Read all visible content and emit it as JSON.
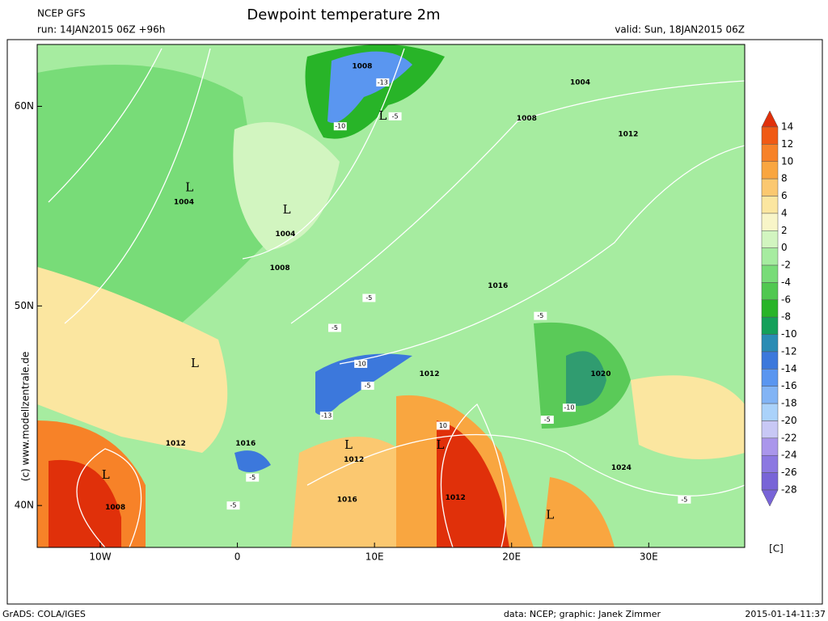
{
  "header": {
    "model": "NCEP GFS",
    "run": "run: 14JAN2015 06Z +96h",
    "title": "Dewpoint temperature 2m",
    "valid": "valid: Sun, 18JAN2015 06Z"
  },
  "side_text": "(c) www.modellzentrale.de",
  "map": {
    "lonlim": [
      -14.6,
      37
    ],
    "latlim": [
      37.9,
      63.1
    ],
    "lonticks": [
      {
        "value": -10,
        "label": "10W"
      },
      0,
      {
        "value": 10,
        "label": "10E"
      },
      {
        "value": 20,
        "label": "20E"
      },
      {
        "value": 30,
        "label": "30E"
      }
    ],
    "latticks": [
      {
        "value": 40,
        "label": "40N"
      },
      {
        "value": 50,
        "label": "50N"
      },
      {
        "value": 60,
        "label": "60N"
      }
    ],
    "isobar_labels": [
      {
        "value": 1008,
        "lon": 9.1,
        "lat": 62.0
      },
      {
        "value": 1004,
        "lon": 25.0,
        "lat": 61.2
      },
      {
        "value": 1008,
        "lon": 21.1,
        "lat": 59.4
      },
      {
        "value": 1012,
        "lon": 28.5,
        "lat": 58.6
      },
      {
        "value": 1004,
        "lon": -3.9,
        "lat": 55.2
      },
      {
        "value": 1004,
        "lon": 3.5,
        "lat": 53.6
      },
      {
        "value": 1008,
        "lon": 3.1,
        "lat": 51.9
      },
      {
        "value": 1016,
        "lon": 19.0,
        "lat": 51.0
      },
      {
        "value": 1012,
        "lon": 14.0,
        "lat": 46.6
      },
      {
        "value": 1020,
        "lon": 26.5,
        "lat": 46.6
      },
      {
        "value": 1012,
        "lon": -4.5,
        "lat": 43.1
      },
      {
        "value": 1016,
        "lon": 0.6,
        "lat": 43.1
      },
      {
        "value": 1012,
        "lon": 8.5,
        "lat": 42.3
      },
      {
        "value": 1024,
        "lon": 28.0,
        "lat": 41.9
      },
      {
        "value": 1016,
        "lon": 8.0,
        "lat": 40.3
      },
      {
        "value": 1012,
        "lon": 15.9,
        "lat": 40.4
      },
      {
        "value": 1008,
        "lon": -8.9,
        "lat": 39.9
      }
    ],
    "low_label": "L",
    "lows": [
      {
        "lon": 10.6,
        "lat": 59.5
      },
      {
        "lon": -3.5,
        "lat": 55.9
      },
      {
        "lon": 3.6,
        "lat": 54.8
      },
      {
        "lon": -3.1,
        "lat": 47.1
      },
      {
        "lon": -9.6,
        "lat": 41.5
      },
      {
        "lon": 8.1,
        "lat": 43.0
      },
      {
        "lon": 14.8,
        "lat": 43.0
      },
      {
        "lon": 22.8,
        "lat": 39.5
      }
    ],
    "dewpoint_labels": [
      {
        "value": -13,
        "lon": 10.6,
        "lat": 61.2
      },
      {
        "value": -5,
        "lon": 11.5,
        "lat": 59.5
      },
      {
        "value": -10,
        "lon": 7.5,
        "lat": 59.0
      },
      {
        "value": -5,
        "lon": 9.6,
        "lat": 50.4
      },
      {
        "value": -5,
        "lon": 7.1,
        "lat": 48.9
      },
      {
        "value": -10,
        "lon": 9.0,
        "lat": 47.1
      },
      {
        "value": -5,
        "lon": 9.5,
        "lat": 46.0
      },
      {
        "value": -13,
        "lon": 6.5,
        "lat": 44.5
      },
      {
        "value": -5,
        "lon": 22.1,
        "lat": 49.5
      },
      {
        "value": -10,
        "lon": 24.2,
        "lat": 44.9
      },
      {
        "value": -5,
        "lon": 22.6,
        "lat": 44.3
      },
      {
        "value": -5,
        "lon": 1.1,
        "lat": 41.4
      },
      {
        "value": -5,
        "lon": -0.3,
        "lat": 40.0
      },
      {
        "value": -5,
        "lon": 32.6,
        "lat": 40.3
      },
      {
        "value": 10,
        "lon": 15.0,
        "lat": 44.0
      }
    ]
  },
  "colorbar": {
    "levels": [
      14,
      12,
      10,
      8,
      6,
      4,
      2,
      0,
      -2,
      -4,
      -6,
      -8,
      -10,
      -12,
      -14,
      -16,
      -18,
      -20,
      -22,
      -24,
      -26,
      -28
    ],
    "colors": [
      "#e0300a",
      "#f05a14",
      "#f78228",
      "#f9a640",
      "#fbc870",
      "#fbe6a0",
      "#f8f5c8",
      "#d2f5c0",
      "#a6eca0",
      "#78dc78",
      "#50c850",
      "#28b428",
      "#14a05a",
      "#2a8cb4",
      "#3c78dc",
      "#5a96f0",
      "#82b4f5",
      "#aad2fa",
      "#c8c8f5",
      "#aa96eb",
      "#8c78e1",
      "#7864d7"
    ],
    "unit": "[C]"
  },
  "footer": {
    "left": "GrADS: COLA/IGES",
    "center": "data: NCEP; graphic: Janek Zimmer",
    "right": "2015-01-14-11:37"
  }
}
